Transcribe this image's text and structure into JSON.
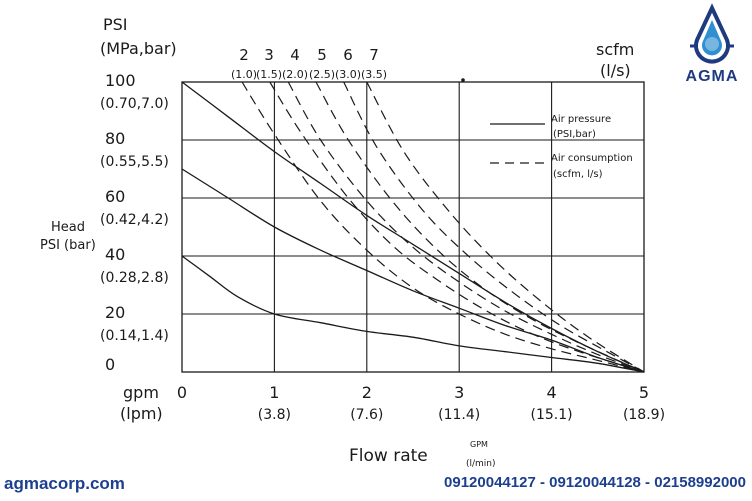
{
  "brand": {
    "logo_text": "AGMA",
    "colors": {
      "brand_blue": "#1d3f8f",
      "drop_blue": "#2f8fd0"
    }
  },
  "footer": {
    "website": "agmacorp.com",
    "phones": "09120044127 - 09120044128 - 02158992000"
  },
  "chart_data": {
    "type": "line",
    "title": "",
    "y_title_top": "PSI",
    "y_title_bottom": "(MPa,bar)",
    "ylabel_line1": "Head",
    "ylabel_line2": "PSI (bar)",
    "xlabel": "Flow rate",
    "xlabel_unit_top": "GPM",
    "xlabel_unit_bottom": "(l/min)",
    "x_axis_unit_top": "gpm",
    "x_axis_unit_bottom": "(lpm)",
    "right_title_top": "scfm",
    "right_title_bottom": "(l/s)",
    "xlim": [
      0,
      5
    ],
    "ylim": [
      0,
      100
    ],
    "grid": true,
    "x_ticks": [
      {
        "value": 0,
        "label": "0",
        "sub": ""
      },
      {
        "value": 1,
        "label": "1",
        "sub": "(3.8)"
      },
      {
        "value": 2,
        "label": "2",
        "sub": "(7.6)"
      },
      {
        "value": 3,
        "label": "3",
        "sub": "(11.4)"
      },
      {
        "value": 4,
        "label": "4",
        "sub": "(15.1)"
      },
      {
        "value": 5,
        "label": "5",
        "sub": "(18.9)"
      }
    ],
    "y_ticks": [
      {
        "value": 100,
        "label": "100",
        "sub": "(0.70,7.0)"
      },
      {
        "value": 80,
        "label": "80",
        "sub": "(0.55,5.5)"
      },
      {
        "value": 60,
        "label": "60",
        "sub": "(0.42,4.2)"
      },
      {
        "value": 40,
        "label": "40",
        "sub": "(0.28,2.8)"
      },
      {
        "value": 20,
        "label": "20",
        "sub": "(0.14,1.4)"
      },
      {
        "value": 0,
        "label": "0",
        "sub": ""
      }
    ],
    "legend": {
      "placement": "top-right",
      "entries": [
        {
          "style": "solid",
          "line1": "Air pressure",
          "line2": "(PSI,bar)"
        },
        {
          "style": "dashed",
          "line1": "Air consumption",
          "line2": "(scfm, l/s)"
        }
      ]
    },
    "air_pressure_series": [
      {
        "name": "",
        "x": [
          0,
          0.5,
          1,
          1.5,
          2,
          2.5,
          3,
          3.5,
          4,
          4.5,
          5
        ],
        "y": [
          100,
          88,
          76,
          65,
          54,
          44,
          34,
          24,
          15,
          7,
          0
        ]
      },
      {
        "name": "",
        "x": [
          0,
          0.5,
          1,
          1.5,
          2,
          2.5,
          3,
          3.5,
          4,
          4.5,
          5
        ],
        "y": [
          70,
          60,
          50,
          42,
          35,
          28,
          22,
          16,
          11,
          5,
          0
        ]
      },
      {
        "name": "",
        "x": [
          0,
          0.3,
          0.6,
          1,
          1.5,
          2,
          2.5,
          3,
          3.5,
          4,
          4.5,
          5
        ],
        "y": [
          40,
          33,
          26,
          20,
          17,
          14,
          12,
          9,
          7,
          5,
          3,
          0
        ]
      }
    ],
    "air_consumption_series": [
      {
        "name": "2 (1.0)",
        "top_label": "2",
        "top_sub": "(1.0)",
        "x": [
          0.65,
          1.0,
          1.5,
          2.0,
          2.5,
          3.0,
          3.5,
          4.0,
          4.5,
          5.0
        ],
        "y": [
          100,
          82,
          59,
          42,
          29,
          20,
          13,
          8,
          4,
          0
        ]
      },
      {
        "name": "3 (1.5)",
        "top_label": "3",
        "top_sub": "(1.5)",
        "x": [
          0.95,
          1.3,
          1.8,
          2.3,
          2.8,
          3.3,
          3.8,
          4.3,
          5.0
        ],
        "y": [
          100,
          82,
          60,
          43,
          31,
          21,
          13,
          7,
          0
        ]
      },
      {
        "name": "4 (2.0)",
        "top_label": "4",
        "top_sub": "(2.0)",
        "x": [
          1.15,
          1.5,
          2.0,
          2.5,
          3.0,
          3.5,
          4.0,
          4.5,
          5.0
        ],
        "y": [
          100,
          80,
          59,
          43,
          31,
          21,
          13,
          6,
          0
        ]
      },
      {
        "name": "5 (2.5)",
        "top_label": "5",
        "top_sub": "(2.5)",
        "x": [
          1.45,
          1.8,
          2.3,
          2.8,
          3.3,
          3.8,
          4.3,
          5.0
        ],
        "y": [
          100,
          80,
          58,
          41,
          28,
          18,
          10,
          0
        ]
      },
      {
        "name": "6 (3.0)",
        "top_label": "6",
        "top_sub": "(3.0)",
        "x": [
          1.75,
          2.1,
          2.6,
          3.1,
          3.6,
          4.1,
          4.6,
          5.0
        ],
        "y": [
          100,
          78,
          56,
          40,
          27,
          16,
          7,
          0
        ]
      },
      {
        "name": "7 (3.5)",
        "top_label": "7",
        "top_sub": "(3.5)",
        "x": [
          2.0,
          2.4,
          2.9,
          3.4,
          3.9,
          4.4,
          5.0
        ],
        "y": [
          100,
          76,
          55,
          38,
          24,
          12,
          0
        ]
      }
    ]
  }
}
